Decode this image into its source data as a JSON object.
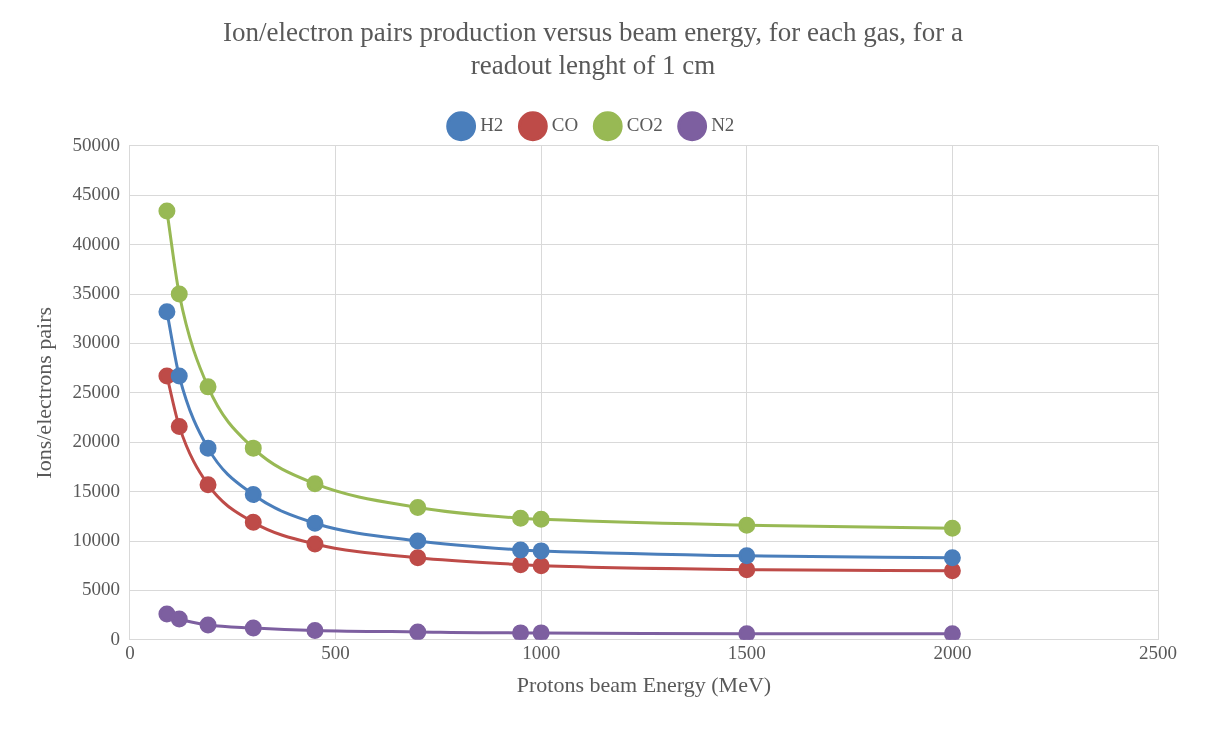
{
  "chart_data": {
    "type": "line",
    "title": "Ion/electron pairs production versus beam energy, for each gas, for a readout lenght of 1 cm",
    "xlabel": "Protons beam Energy (MeV)",
    "ylabel": "Ions/electrons pairs",
    "x": [
      90,
      120,
      190,
      300,
      450,
      700,
      950,
      1000,
      1500,
      2000
    ],
    "series": [
      {
        "name": "H2",
        "color": "#4a7ebb",
        "values": [
          33200,
          26700,
          19400,
          14700,
          11800,
          10000,
          9100,
          9000,
          8500,
          8300
        ]
      },
      {
        "name": "CO",
        "color": "#be4b48",
        "values": [
          26700,
          21600,
          15700,
          11900,
          9700,
          8300,
          7600,
          7500,
          7100,
          7000
        ]
      },
      {
        "name": "CO2",
        "color": "#98b954",
        "values": [
          43400,
          35000,
          25600,
          19400,
          15800,
          13400,
          12300,
          12200,
          11600,
          11300
        ]
      },
      {
        "name": "N2",
        "color": "#7d5fa0",
        "values": [
          2600,
          2100,
          1500,
          1200,
          950,
          800,
          700,
          700,
          600,
          600
        ]
      }
    ],
    "xlim": [
      0,
      2500
    ],
    "xticks": [
      0,
      500,
      1000,
      1500,
      2000,
      2500
    ],
    "ylim": [
      0,
      50000
    ],
    "yticks": [
      0,
      5000,
      10000,
      15000,
      20000,
      25000,
      30000,
      35000,
      40000,
      45000,
      50000
    ],
    "grid": true,
    "legend": "top",
    "marker": "circle",
    "line_style": "solid"
  }
}
